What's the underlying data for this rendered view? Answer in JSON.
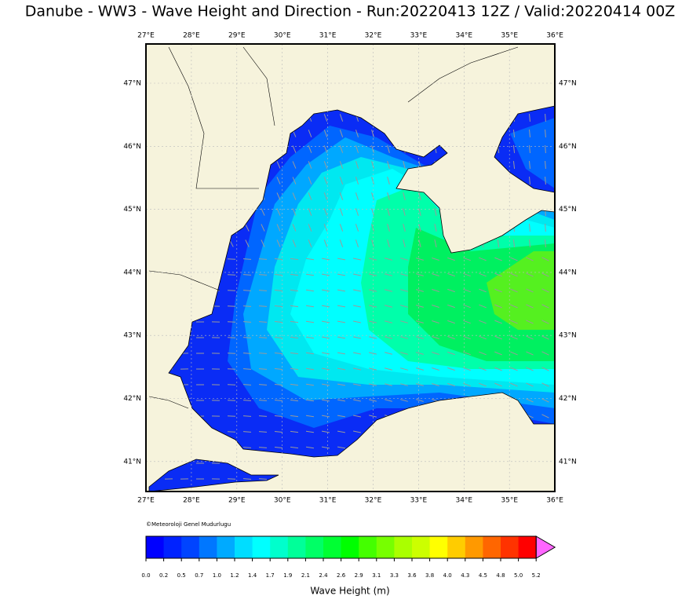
{
  "title": "Danube - WW3 - Wave Height and Direction - Run:20220413 12Z / Valid:20220414 00Z",
  "map": {
    "lon_ticks": [
      "27°E",
      "28°E",
      "29°E",
      "30°E",
      "31°E",
      "32°E",
      "33°E",
      "34°E",
      "35°E",
      "36°E"
    ],
    "lat_ticks": [
      "47°N",
      "46°N",
      "45°N",
      "44°N",
      "43°N",
      "42°N",
      "41°N"
    ]
  },
  "credit": "©Meteoroloji Genel Mudurlugu",
  "colorbar": {
    "label": "Wave Height (m)",
    "ticks": [
      "0.0",
      "0.2",
      "0.5",
      "0.7",
      "1.0",
      "1.2",
      "1.4",
      "1.7",
      "1.9",
      "2.1",
      "2.4",
      "2.6",
      "2.9",
      "3.1",
      "3.3",
      "3.6",
      "3.8",
      "4.0",
      "4.3",
      "4.5",
      "4.8",
      "5.0",
      "5.2"
    ],
    "colors": [
      "#0000ff",
      "#0022ff",
      "#0044ff",
      "#0077ff",
      "#00aaff",
      "#00ddff",
      "#00ffff",
      "#00ffcc",
      "#00ff99",
      "#00ff66",
      "#00ff33",
      "#00ff00",
      "#44ff00",
      "#77ff00",
      "#aaff00",
      "#ccff00",
      "#ffff00",
      "#ffcc00",
      "#ff9900",
      "#ff6600",
      "#ff3300",
      "#ff0000"
    ],
    "extend_color": "#ff66ff"
  }
}
